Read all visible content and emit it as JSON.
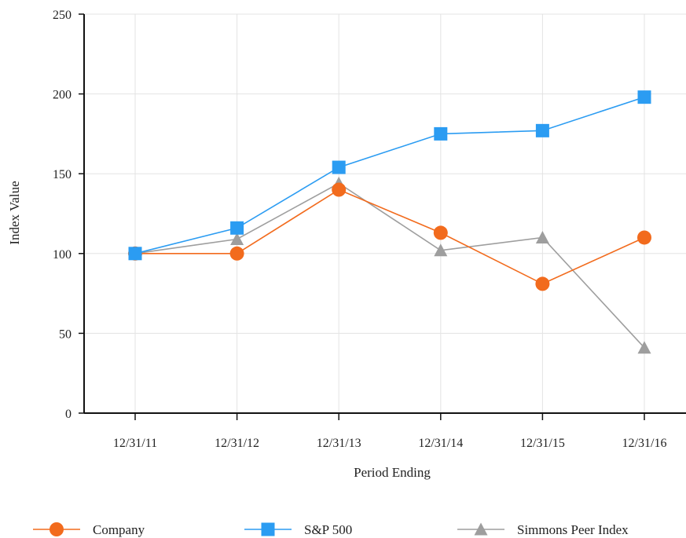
{
  "chart_data": {
    "type": "line",
    "title": "",
    "xlabel": "Period Ending",
    "ylabel": "Index Value",
    "categories": [
      "12/31/11",
      "12/31/12",
      "12/31/13",
      "12/31/14",
      "12/31/15",
      "12/31/16"
    ],
    "ylim": [
      0,
      250
    ],
    "yticks": [
      0,
      50,
      100,
      150,
      200,
      250
    ],
    "grid": true,
    "legend_position": "bottom",
    "series": [
      {
        "name": "Company",
        "marker": "circle",
        "color": "#f26b1d",
        "values": [
          100,
          100,
          140,
          113,
          81,
          110
        ]
      },
      {
        "name": "S&P 500",
        "marker": "square",
        "color": "#2b9cf2",
        "values": [
          100,
          116,
          154,
          175,
          177,
          198
        ]
      },
      {
        "name": "Simmons Peer Index",
        "marker": "triangle",
        "color": "#9e9e9e",
        "values": [
          100,
          109,
          144,
          102,
          110,
          41
        ]
      }
    ]
  }
}
